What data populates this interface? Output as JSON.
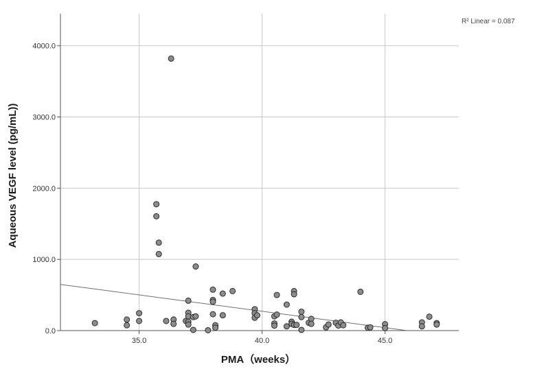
{
  "chart_data": {
    "type": "scatter",
    "xlabel": "PMA（weeks）",
    "ylabel": "Aqueous VEGF level (pg/mL))",
    "xlim": [
      31.8,
      48.0
    ],
    "ylim": [
      0,
      4450
    ],
    "xticks": [
      35.0,
      40.0,
      45.0
    ],
    "xtick_labels": [
      "35.0",
      "40.0",
      "45.0"
    ],
    "yticks": [
      0,
      1000,
      2000,
      3000,
      4000
    ],
    "ytick_labels": [
      "0.0",
      "1000.0",
      "2000.0",
      "3000.0",
      "4000.0"
    ],
    "grid": true,
    "fit_line": {
      "label": "R² Linear = 0.087",
      "start": [
        31.8,
        648
      ],
      "end": [
        45.9,
        0
      ]
    },
    "marker_color": "#8c8c8c",
    "points": [
      [
        33.2,
        105
      ],
      [
        34.5,
        155
      ],
      [
        34.5,
        75
      ],
      [
        35.0,
        245
      ],
      [
        35.0,
        135
      ],
      [
        35.7,
        1775
      ],
      [
        35.7,
        1605
      ],
      [
        35.8,
        1235
      ],
      [
        35.8,
        1075
      ],
      [
        36.1,
        135
      ],
      [
        36.3,
        3820
      ],
      [
        36.4,
        155
      ],
      [
        36.4,
        95
      ],
      [
        36.9,
        135
      ],
      [
        37.0,
        420
      ],
      [
        37.0,
        250
      ],
      [
        37.0,
        200
      ],
      [
        37.0,
        125
      ],
      [
        37.0,
        85
      ],
      [
        37.2,
        190
      ],
      [
        37.2,
        10
      ],
      [
        37.3,
        900
      ],
      [
        37.3,
        200
      ],
      [
        37.8,
        5
      ],
      [
        38.0,
        575
      ],
      [
        38.0,
        430
      ],
      [
        38.0,
        405
      ],
      [
        38.0,
        230
      ],
      [
        38.1,
        75
      ],
      [
        38.1,
        40
      ],
      [
        38.4,
        520
      ],
      [
        38.4,
        215
      ],
      [
        38.8,
        555
      ],
      [
        39.7,
        300
      ],
      [
        39.7,
        245
      ],
      [
        39.7,
        180
      ],
      [
        39.8,
        215
      ],
      [
        40.5,
        200
      ],
      [
        40.5,
        100
      ],
      [
        40.5,
        70
      ],
      [
        40.6,
        500
      ],
      [
        40.6,
        225
      ],
      [
        41.0,
        365
      ],
      [
        41.0,
        60
      ],
      [
        41.2,
        125
      ],
      [
        41.2,
        95
      ],
      [
        41.3,
        555
      ],
      [
        41.3,
        510
      ],
      [
        41.3,
        80
      ],
      [
        41.4,
        80
      ],
      [
        41.6,
        265
      ],
      [
        41.6,
        190
      ],
      [
        41.6,
        10
      ],
      [
        41.9,
        110
      ],
      [
        42.0,
        165
      ],
      [
        42.0,
        95
      ],
      [
        42.6,
        45
      ],
      [
        42.7,
        85
      ],
      [
        43.0,
        110
      ],
      [
        43.1,
        70
      ],
      [
        43.2,
        115
      ],
      [
        43.3,
        75
      ],
      [
        44.0,
        545
      ],
      [
        44.3,
        40
      ],
      [
        44.4,
        45
      ],
      [
        45.0,
        90
      ],
      [
        45.0,
        35
      ],
      [
        46.5,
        115
      ],
      [
        46.5,
        60
      ],
      [
        46.8,
        195
      ],
      [
        47.1,
        105
      ],
      [
        47.1,
        85
      ]
    ]
  }
}
